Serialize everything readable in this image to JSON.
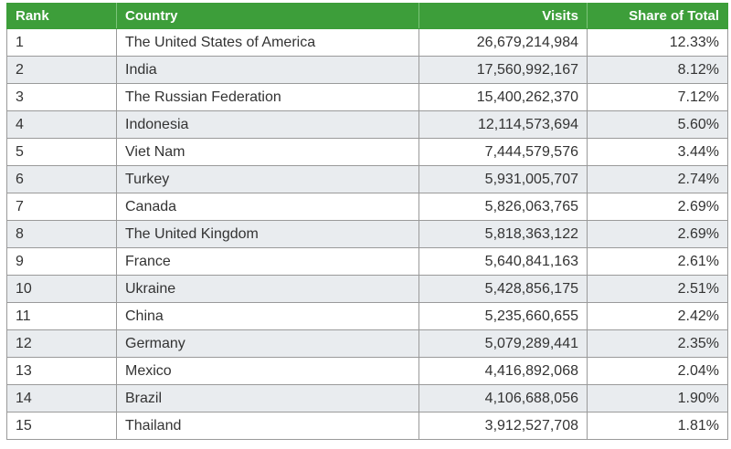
{
  "table": {
    "headers": {
      "rank": "Rank",
      "country": "Country",
      "visits": "Visits",
      "share": "Share of Total"
    },
    "rows": [
      {
        "rank": "1",
        "country": "The United States of America",
        "visits": "26,679,214,984",
        "share": "12.33%"
      },
      {
        "rank": "2",
        "country": "India",
        "visits": "17,560,992,167",
        "share": "8.12%"
      },
      {
        "rank": "3",
        "country": "The Russian Federation",
        "visits": "15,400,262,370",
        "share": "7.12%"
      },
      {
        "rank": "4",
        "country": "Indonesia",
        "visits": "12,114,573,694",
        "share": "5.60%"
      },
      {
        "rank": "5",
        "country": "Viet Nam",
        "visits": "7,444,579,576",
        "share": "3.44%"
      },
      {
        "rank": "6",
        "country": "Turkey",
        "visits": "5,931,005,707",
        "share": "2.74%"
      },
      {
        "rank": "7",
        "country": "Canada",
        "visits": "5,826,063,765",
        "share": "2.69%"
      },
      {
        "rank": "8",
        "country": "The United Kingdom",
        "visits": "5,818,363,122",
        "share": "2.69%"
      },
      {
        "rank": "9",
        "country": "France",
        "visits": "5,640,841,163",
        "share": "2.61%"
      },
      {
        "rank": "10",
        "country": "Ukraine",
        "visits": "5,428,856,175",
        "share": "2.51%"
      },
      {
        "rank": "11",
        "country": "China",
        "visits": "5,235,660,655",
        "share": "2.42%"
      },
      {
        "rank": "12",
        "country": "Germany",
        "visits": "5,079,289,441",
        "share": "2.35%"
      },
      {
        "rank": "13",
        "country": "Mexico",
        "visits": "4,416,892,068",
        "share": "2.04%"
      },
      {
        "rank": "14",
        "country": "Brazil",
        "visits": "4,106,688,056",
        "share": "1.90%"
      },
      {
        "rank": "15",
        "country": "Thailand",
        "visits": "3,912,527,708",
        "share": "1.81%"
      }
    ]
  },
  "colors": {
    "header_background": "#3d9e3a",
    "header_text": "#ffffff",
    "stripe": "#e9ecef",
    "grid": "#9a9a9a",
    "text": "#333333"
  }
}
